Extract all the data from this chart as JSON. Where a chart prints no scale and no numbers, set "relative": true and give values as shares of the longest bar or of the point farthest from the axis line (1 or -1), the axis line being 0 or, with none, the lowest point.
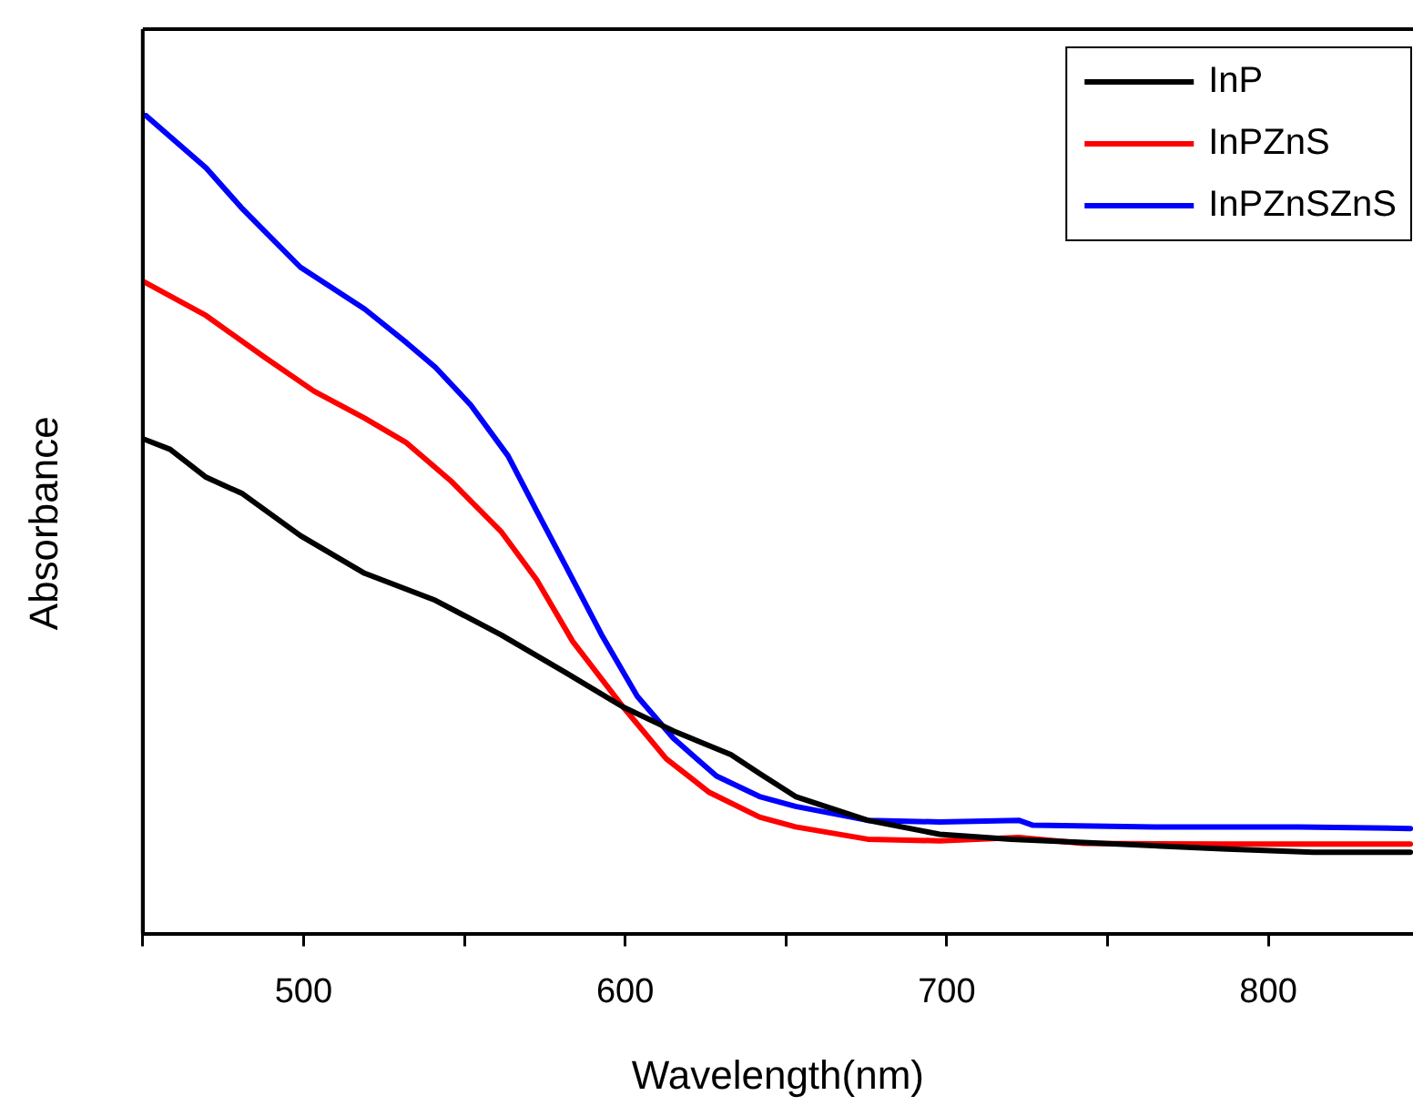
{
  "chart_data": {
    "type": "line",
    "relative": true,
    "xlabel": "Wavelength(nm)",
    "ylabel": "Absorbance",
    "legend": "top right",
    "marker": "none",
    "line_style": "solid",
    "grid": false,
    "xlim": [
      450,
      845
    ],
    "xticks": [
      {
        "value": 450,
        "label": null
      },
      500,
      {
        "value": 550,
        "label": null
      },
      600,
      {
        "value": 650,
        "label": null
      },
      700,
      {
        "value": 750,
        "label": null
      },
      800
    ],
    "series": [
      {
        "name": "InP",
        "color": "#000000",
        "x": [
          450,
          458.5,
          469.7,
          481,
          499,
          519,
          541,
          561.4,
          581.5,
          599.4,
          615,
          632.9,
          641.8,
          653,
          675.4,
          697.8,
          720,
          742.5,
          787.2,
          814,
          844.2
        ],
        "values": [
          0.603,
          0.59,
          0.556,
          0.536,
          0.485,
          0.439,
          0.406,
          0.364,
          0.318,
          0.276,
          0.247,
          0.218,
          0.195,
          0.167,
          0.138,
          0.121,
          0.115,
          0.111,
          0.103,
          0.099,
          0.099
        ]
      },
      {
        "name": "InPZnS",
        "color": "#ff0000",
        "x": [
          450,
          469.7,
          487.6,
          503.2,
          519,
          532,
          545.7,
          561.4,
          572.5,
          583.7,
          599.4,
          612.8,
          626.2,
          641.8,
          653,
          675.4,
          697.8,
          722.4,
          742.5,
          787.2,
          844.2
        ],
        "values": [
          0.795,
          0.753,
          0.703,
          0.661,
          0.628,
          0.598,
          0.552,
          0.49,
          0.431,
          0.356,
          0.276,
          0.213,
          0.172,
          0.142,
          0.13,
          0.115,
          0.113,
          0.117,
          0.11,
          0.109,
          0.109
        ]
      },
      {
        "name": "InPZnSZnS",
        "color": "#0000ff",
        "x": [
          450,
          469.7,
          481,
          499,
          519,
          532,
          541,
          552,
          563.6,
          572.5,
          581.5,
          592.7,
          603.8,
          615,
          628.4,
          641.8,
          653,
          675.4,
          697.8,
          722.4,
          726.8,
          764.8,
          809.6,
          844.2
        ],
        "values": [
          1,
          0.933,
          0.883,
          0.812,
          0.761,
          0.72,
          0.69,
          0.644,
          0.582,
          0.515,
          0.448,
          0.364,
          0.289,
          0.238,
          0.192,
          0.167,
          0.155,
          0.138,
          0.136,
          0.138,
          0.132,
          0.13,
          0.13,
          0.128
        ]
      }
    ]
  }
}
